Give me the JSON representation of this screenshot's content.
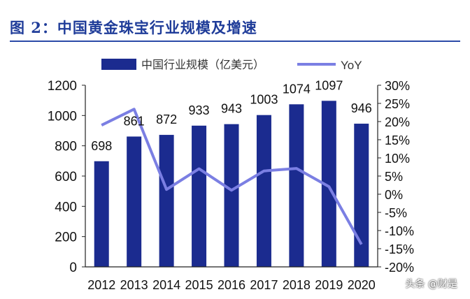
{
  "figure_title": "图 2：中国黄金珠宝行业规模及增速",
  "watermark": "头条 @财是",
  "colors": {
    "bar": "#1b2b8f",
    "line": "#7b7fe3",
    "title": "#1f3c99"
  },
  "chart_data": {
    "type": "bar",
    "title": "",
    "categories": [
      "2012",
      "2013",
      "2014",
      "2015",
      "2016",
      "2017",
      "2018",
      "2019",
      "2020"
    ],
    "series": [
      {
        "name": "中国行业规模（亿美元）",
        "type": "bar",
        "axis": "left",
        "values": [
          698,
          861,
          872,
          933,
          943,
          1003,
          1074,
          1097,
          946
        ]
      },
      {
        "name": "YoY",
        "type": "line",
        "axis": "right",
        "values": [
          19.0,
          23.4,
          1.3,
          7.0,
          1.1,
          6.4,
          7.1,
          2.1,
          -13.8
        ]
      }
    ],
    "y_left": {
      "min": 0,
      "max": 1200,
      "ticks": [
        0,
        200,
        400,
        600,
        800,
        1000,
        1200
      ]
    },
    "y_right": {
      "min": -20,
      "max": 30,
      "ticks": [
        "-20%",
        "-15%",
        "-10%",
        "-5%",
        "0%",
        "5%",
        "10%",
        "15%",
        "20%",
        "25%",
        "30%"
      ]
    },
    "bar_labels": [
      "698",
      "861",
      "872",
      "933",
      "943",
      "1003",
      "1074",
      "1097",
      "946"
    ],
    "legend": {
      "position": "top"
    },
    "grid": false
  }
}
